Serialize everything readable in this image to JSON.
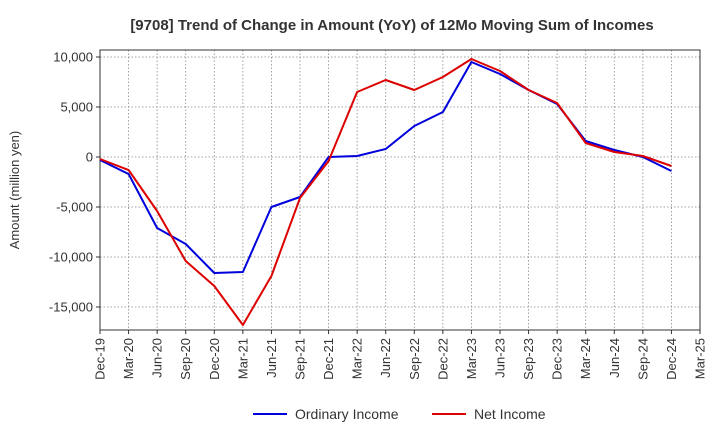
{
  "chart_data": {
    "type": "line",
    "title": "[9708]  Trend of Change in Amount (YoY) of 12Mo Moving Sum of Incomes",
    "ylabel": "Amount (million yen)",
    "xlabel": "",
    "ylim": [
      -17300,
      10700
    ],
    "yticks": [
      10000,
      5000,
      0,
      -5000,
      -10000,
      -15000
    ],
    "ytick_labels": [
      "10,000",
      "5,000",
      "0",
      "-5,000",
      "-10,000",
      "-15,000"
    ],
    "x": [
      "Dec-19",
      "Mar-20",
      "Jun-20",
      "Sep-20",
      "Dec-20",
      "Mar-21",
      "Jun-21",
      "Sep-21",
      "Dec-21",
      "Mar-22",
      "Jun-22",
      "Sep-22",
      "Dec-22",
      "Mar-23",
      "Jun-23",
      "Sep-23",
      "Dec-23",
      "Mar-24",
      "Jun-24",
      "Sep-24",
      "Dec-24",
      "Mar-25"
    ],
    "grid": true,
    "legend_position": "bottom",
    "series": [
      {
        "name": "Ordinary Income",
        "color": "#0000dd",
        "values": [
          -300,
          -1700,
          -7100,
          -8700,
          -11600,
          -11500,
          -5000,
          -4000,
          0,
          100,
          800,
          3100,
          4500,
          9500,
          8300,
          6700,
          5300,
          1600,
          700,
          0,
          -1400,
          null
        ]
      },
      {
        "name": "Net Income",
        "color": "#dd0000",
        "values": [
          -200,
          -1300,
          -5400,
          -10400,
          -12900,
          -16800,
          -11900,
          -4100,
          -400,
          6500,
          7700,
          6700,
          8000,
          9800,
          8600,
          6700,
          5400,
          1400,
          500,
          100,
          -900,
          null
        ]
      }
    ]
  }
}
